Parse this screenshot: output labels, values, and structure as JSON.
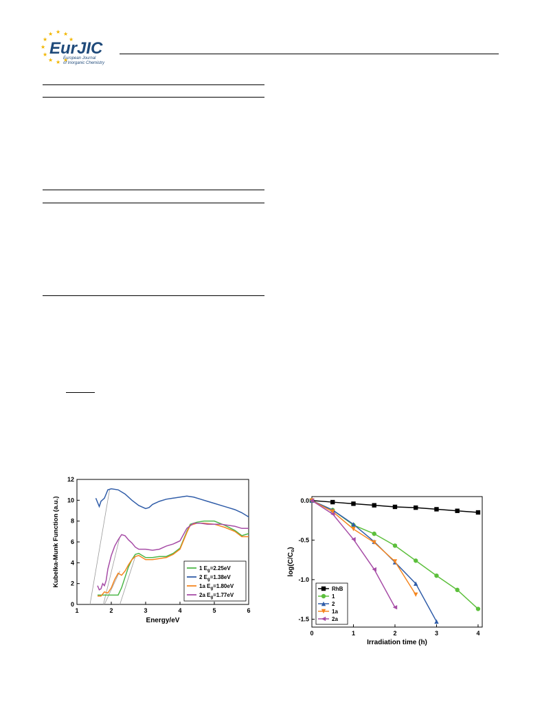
{
  "header": {
    "logo_text": "EurJIC",
    "logo_subtitle_1": "European Journal",
    "logo_subtitle_2": "of Inorganic Chemistry",
    "star_color": "#f2b600",
    "logo_text_color": "#1f4a7a"
  },
  "chart_data": [
    {
      "type": "line",
      "xlabel": "Energy/eV",
      "ylabel": "Kubelka-Munk Function (a.u.)",
      "xlim": [
        1,
        6
      ],
      "ylim": [
        0,
        12
      ],
      "x_ticks": [
        "1",
        "2",
        "3",
        "4",
        "5",
        "6"
      ],
      "y_ticks": [
        "0",
        "2",
        "4",
        "6",
        "8",
        "10",
        "12"
      ],
      "legend_position": "bottom-right",
      "series": [
        {
          "name": "1 E",
          "sub": "g",
          "suffix": "=2.25eV",
          "color": "#4cb648",
          "x": [
            1.6,
            1.8,
            2.0,
            2.2,
            2.3,
            2.4,
            2.5,
            2.6,
            2.7,
            2.8,
            2.9,
            3.0,
            3.2,
            3.4,
            3.6,
            3.8,
            4.0,
            4.2,
            4.3,
            4.5,
            4.7,
            5.0,
            5.3,
            5.6,
            5.8,
            6.0
          ],
          "y": [
            0.9,
            0.9,
            0.9,
            0.9,
            1.6,
            2.6,
            3.6,
            4.3,
            4.8,
            4.9,
            4.7,
            4.5,
            4.5,
            4.6,
            4.6,
            4.9,
            5.4,
            7.0,
            7.7,
            7.9,
            8.0,
            8.0,
            7.6,
            7.1,
            6.6,
            6.8
          ]
        },
        {
          "name": "2 E",
          "sub": "g",
          "suffix": "=1.38eV",
          "color": "#2f5ca8",
          "x": [
            1.55,
            1.6,
            1.65,
            1.7,
            1.8,
            1.85,
            1.9,
            2.0,
            2.2,
            2.4,
            2.6,
            2.8,
            3.0,
            3.1,
            3.2,
            3.4,
            3.6,
            3.8,
            4.0,
            4.2,
            4.4,
            4.6,
            4.8,
            5.0,
            5.2,
            5.4,
            5.6,
            5.8,
            6.0
          ],
          "y": [
            10.2,
            9.8,
            9.4,
            9.9,
            10.2,
            10.6,
            11.0,
            11.1,
            11.0,
            10.6,
            10.0,
            9.5,
            9.2,
            9.3,
            9.6,
            9.9,
            10.1,
            10.2,
            10.3,
            10.4,
            10.3,
            10.1,
            9.9,
            9.7,
            9.5,
            9.3,
            9.1,
            8.8,
            8.4
          ]
        },
        {
          "name": "1a E",
          "sub": "g",
          "suffix": "=1.80eV",
          "color": "#f5861f",
          "x": [
            1.6,
            1.7,
            1.8,
            1.9,
            2.0,
            2.1,
            2.2,
            2.3,
            2.4,
            2.5,
            2.6,
            2.7,
            2.8,
            2.9,
            3.0,
            3.2,
            3.4,
            3.6,
            3.8,
            4.0,
            4.2,
            4.3,
            4.5,
            4.7,
            5.0,
            5.3,
            5.6,
            5.8,
            6.0
          ],
          "y": [
            0.8,
            0.8,
            1.2,
            1.1,
            1.6,
            2.4,
            3.0,
            2.8,
            3.2,
            3.8,
            4.3,
            4.6,
            4.7,
            4.5,
            4.3,
            4.3,
            4.4,
            4.5,
            4.8,
            5.3,
            6.9,
            7.6,
            7.8,
            7.8,
            7.7,
            7.4,
            7.0,
            6.5,
            6.5
          ]
        },
        {
          "name": "2a E",
          "sub": "g",
          "suffix": "=1.77eV",
          "color": "#a64ca6",
          "x": [
            1.6,
            1.65,
            1.7,
            1.75,
            1.8,
            1.85,
            1.9,
            2.0,
            2.1,
            2.2,
            2.3,
            2.4,
            2.5,
            2.6,
            2.7,
            2.8,
            3.0,
            3.2,
            3.4,
            3.6,
            3.8,
            4.0,
            4.2,
            4.4,
            4.6,
            4.8,
            5.0,
            5.2,
            5.4,
            5.6,
            5.8,
            6.0
          ],
          "y": [
            1.8,
            1.4,
            1.5,
            2.0,
            1.8,
            2.3,
            3.4,
            4.7,
            5.6,
            6.2,
            6.7,
            6.6,
            6.2,
            5.9,
            5.5,
            5.3,
            5.3,
            5.2,
            5.3,
            5.6,
            5.8,
            6.1,
            7.3,
            7.8,
            7.8,
            7.7,
            7.7,
            7.7,
            7.6,
            7.5,
            7.3,
            7.3
          ]
        }
      ],
      "tangent_lines": [
        {
          "x": [
            1.38,
            1.95
          ],
          "y": [
            0,
            11.0
          ]
        },
        {
          "x": [
            1.77,
            2.25
          ],
          "y": [
            0,
            6.5
          ]
        },
        {
          "x": [
            1.8,
            2.25
          ],
          "y": [
            0,
            3.2
          ]
        },
        {
          "x": [
            2.25,
            2.7
          ],
          "y": [
            0,
            4.6
          ]
        }
      ]
    },
    {
      "type": "line",
      "xlabel": "Irradiation time (h)",
      "ylabel": "log(C/C",
      "ylabel_sub": "o",
      "ylabel_end": ")",
      "xlim": [
        0,
        4.1
      ],
      "ylim": [
        -1.6,
        0.05
      ],
      "x_ticks": [
        0,
        1,
        2,
        3,
        4
      ],
      "x_tick_labels": [
        "0",
        "1",
        "2",
        "3",
        "4"
      ],
      "y_ticks": [
        0.0,
        -0.5,
        -1.0,
        -1.5
      ],
      "y_tick_labels": [
        "0.0",
        "-0.5",
        "-1.0",
        "-1.5"
      ],
      "legend_position": "bottom-left",
      "series": [
        {
          "name": "RhB",
          "marker": "square",
          "color": "#000000",
          "x": [
            0,
            0.5,
            1,
            1.5,
            2,
            2.5,
            3,
            3.5,
            4
          ],
          "y": [
            0,
            -0.02,
            -0.04,
            -0.06,
            -0.08,
            -0.09,
            -0.11,
            -0.13,
            -0.15
          ]
        },
        {
          "name": "1",
          "marker": "circle",
          "color": "#5cbf3c",
          "x": [
            0,
            0.5,
            1,
            1.5,
            2,
            2.5,
            3,
            3.5,
            4
          ],
          "y": [
            0,
            -0.12,
            -0.31,
            -0.42,
            -0.57,
            -0.76,
            -0.95,
            -1.13,
            -1.37
          ]
        },
        {
          "name": "2",
          "marker": "triangle-up",
          "color": "#2f5ca8",
          "x": [
            0,
            0.5,
            1,
            1.5,
            2,
            2.5,
            3
          ],
          "y": [
            0,
            -0.12,
            -0.3,
            -0.52,
            -0.78,
            -1.05,
            -1.53
          ]
        },
        {
          "name": "1a",
          "marker": "triangle-down",
          "color": "#f5861f",
          "x": [
            0,
            0.5,
            1,
            1.5,
            2,
            2.5
          ],
          "y": [
            0,
            -0.14,
            -0.36,
            -0.53,
            -0.77,
            -1.19
          ]
        },
        {
          "name": "2a",
          "marker": "triangle-left",
          "color": "#a64ca6",
          "x": [
            0,
            0.5,
            1,
            1.5,
            2
          ],
          "y": [
            0,
            -0.17,
            -0.49,
            -0.87,
            -1.35
          ]
        }
      ]
    }
  ]
}
